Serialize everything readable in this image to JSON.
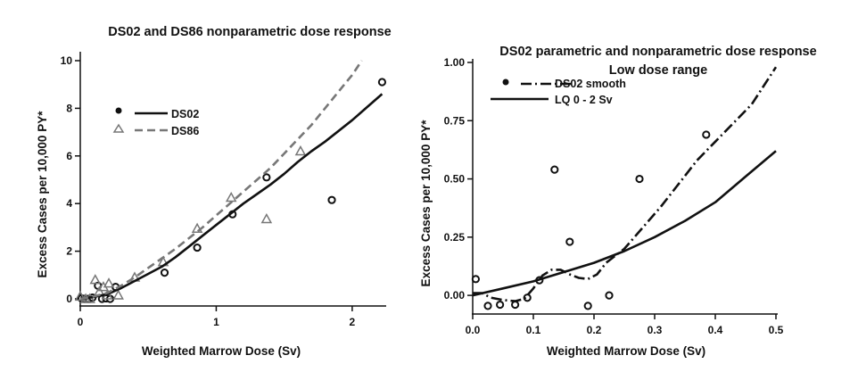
{
  "chart_data": [
    {
      "type": "scatter",
      "title": "DS02 and DS86 nonparametric dose response",
      "xlabel": "Weighted Marrow Dose (Sv)",
      "ylabel": "Excess Cases per 10,000 PY*",
      "xlim": [
        0,
        2.25
      ],
      "ylim": [
        -0.3,
        10
      ],
      "xticks": [
        0,
        1,
        2
      ],
      "xtick_labels": [
        "0",
        "1",
        "2"
      ],
      "yticks": [
        0,
        2,
        4,
        6,
        8,
        10
      ],
      "ytick_labels": [
        "0",
        "2",
        "4",
        "6",
        "8",
        "10"
      ],
      "legend": {
        "position": "top-left",
        "entries": [
          "DS02",
          "DS86"
        ]
      },
      "series": [
        {
          "name": "DS02",
          "kind": "points",
          "marker": "circle",
          "color": "#111111",
          "points": [
            [
              0.01,
              0.02
            ],
            [
              0.03,
              0.0
            ],
            [
              0.06,
              0.0
            ],
            [
              0.09,
              0.05
            ],
            [
              0.13,
              0.55
            ],
            [
              0.16,
              0.0
            ],
            [
              0.19,
              0.02
            ],
            [
              0.22,
              0.0
            ],
            [
              0.26,
              0.5
            ],
            [
              0.62,
              1.1
            ],
            [
              0.86,
              2.15
            ],
            [
              1.12,
              3.55
            ],
            [
              1.37,
              5.1
            ],
            [
              1.85,
              4.15
            ],
            [
              2.22,
              9.1
            ]
          ]
        },
        {
          "name": "DS86",
          "kind": "points",
          "marker": "triangle",
          "color": "#777777",
          "points": [
            [
              0.0,
              0.1
            ],
            [
              0.04,
              0.0
            ],
            [
              0.07,
              0.0
            ],
            [
              0.11,
              0.8
            ],
            [
              0.14,
              0.3
            ],
            [
              0.17,
              0.5
            ],
            [
              0.2,
              0.15
            ],
            [
              0.21,
              0.65
            ],
            [
              0.28,
              0.15
            ],
            [
              0.4,
              0.9
            ],
            [
              0.61,
              1.55
            ],
            [
              0.86,
              2.95
            ],
            [
              1.11,
              4.25
            ],
            [
              1.37,
              3.35
            ],
            [
              1.62,
              6.2
            ]
          ]
        },
        {
          "name": "DS02",
          "kind": "line",
          "style": "solid",
          "color": "#111111",
          "points": [
            [
              0.0,
              0.0
            ],
            [
              0.1,
              0.08
            ],
            [
              0.2,
              0.2
            ],
            [
              0.3,
              0.45
            ],
            [
              0.4,
              0.75
            ],
            [
              0.5,
              1.05
            ],
            [
              0.6,
              1.35
            ],
            [
              0.7,
              1.75
            ],
            [
              0.8,
              2.2
            ],
            [
              0.9,
              2.65
            ],
            [
              1.0,
              3.1
            ],
            [
              1.1,
              3.55
            ],
            [
              1.2,
              4.0
            ],
            [
              1.3,
              4.4
            ],
            [
              1.4,
              4.8
            ],
            [
              1.5,
              5.25
            ],
            [
              1.6,
              5.75
            ],
            [
              1.7,
              6.2
            ],
            [
              1.8,
              6.6
            ],
            [
              1.9,
              7.05
            ],
            [
              2.0,
              7.5
            ],
            [
              2.1,
              8.0
            ],
            [
              2.22,
              8.6
            ]
          ]
        },
        {
          "name": "DS86",
          "kind": "line",
          "style": "dashed",
          "color": "#777777",
          "points": [
            [
              0.0,
              0.0
            ],
            [
              0.1,
              0.1
            ],
            [
              0.2,
              0.25
            ],
            [
              0.3,
              0.55
            ],
            [
              0.4,
              0.9
            ],
            [
              0.5,
              1.3
            ],
            [
              0.6,
              1.7
            ],
            [
              0.7,
              2.1
            ],
            [
              0.8,
              2.55
            ],
            [
              0.9,
              3.0
            ],
            [
              1.0,
              3.5
            ],
            [
              1.1,
              4.0
            ],
            [
              1.2,
              4.5
            ],
            [
              1.3,
              5.0
            ],
            [
              1.4,
              5.5
            ],
            [
              1.5,
              6.1
            ],
            [
              1.6,
              6.7
            ],
            [
              1.7,
              7.3
            ],
            [
              1.8,
              8.0
            ],
            [
              1.9,
              8.7
            ],
            [
              2.0,
              9.4
            ],
            [
              2.07,
              10.0
            ]
          ]
        }
      ]
    },
    {
      "type": "scatter",
      "title": "DS02 parametric and nonparametric dose response",
      "subtitle": "Low dose range",
      "xlabel": "Weighted Marrow Dose (Sv)",
      "ylabel": "Excess Cases per 10,000 PY*",
      "xlim": [
        0,
        0.5
      ],
      "ylim": [
        -0.08,
        1.0
      ],
      "xticks": [
        0.0,
        0.1,
        0.2,
        0.3,
        0.4,
        0.5
      ],
      "xtick_labels": [
        "0.0",
        "0.1",
        "0.2",
        "0.3",
        "0.4",
        "0.5"
      ],
      "yticks": [
        0.0,
        0.25,
        0.5,
        0.75,
        1.0
      ],
      "ytick_labels": [
        "0.00",
        "0.25",
        "0.50",
        "0.75",
        "1.00"
      ],
      "legend": {
        "position": "top-left",
        "entries": [
          "DS02 smooth",
          "LQ 0 - 2 Sv"
        ]
      },
      "series": [
        {
          "name": "DS02",
          "kind": "points",
          "marker": "circle",
          "color": "#111111",
          "points": [
            [
              0.005,
              0.07
            ],
            [
              0.025,
              -0.045
            ],
            [
              0.045,
              -0.04
            ],
            [
              0.07,
              -0.04
            ],
            [
              0.09,
              -0.01
            ],
            [
              0.11,
              0.065
            ],
            [
              0.135,
              0.54
            ],
            [
              0.16,
              0.23
            ],
            [
              0.19,
              -0.045
            ],
            [
              0.225,
              0.0
            ],
            [
              0.275,
              0.5
            ],
            [
              0.385,
              0.69
            ]
          ]
        },
        {
          "name": "DS02 smooth",
          "kind": "line",
          "style": "dashdot",
          "color": "#111111",
          "points": [
            [
              0.0,
              0.01
            ],
            [
              0.015,
              0.01
            ],
            [
              0.03,
              -0.01
            ],
            [
              0.05,
              -0.02
            ],
            [
              0.07,
              -0.025
            ],
            [
              0.085,
              -0.015
            ],
            [
              0.1,
              0.03
            ],
            [
              0.115,
              0.085
            ],
            [
              0.13,
              0.11
            ],
            [
              0.145,
              0.11
            ],
            [
              0.16,
              0.09
            ],
            [
              0.175,
              0.075
            ],
            [
              0.19,
              0.07
            ],
            [
              0.205,
              0.09
            ],
            [
              0.22,
              0.14
            ],
            [
              0.25,
              0.2
            ],
            [
              0.28,
              0.29
            ],
            [
              0.31,
              0.38
            ],
            [
              0.34,
              0.48
            ],
            [
              0.37,
              0.58
            ],
            [
              0.4,
              0.66
            ],
            [
              0.43,
              0.74
            ],
            [
              0.46,
              0.82
            ],
            [
              0.5,
              0.98
            ]
          ]
        },
        {
          "name": "LQ 0 - 2 Sv",
          "kind": "line",
          "style": "solid",
          "color": "#111111",
          "points": [
            [
              0.0,
              0.0
            ],
            [
              0.05,
              0.03
            ],
            [
              0.1,
              0.06
            ],
            [
              0.15,
              0.1
            ],
            [
              0.2,
              0.14
            ],
            [
              0.25,
              0.19
            ],
            [
              0.3,
              0.25
            ],
            [
              0.35,
              0.32
            ],
            [
              0.4,
              0.4
            ],
            [
              0.45,
              0.51
            ],
            [
              0.5,
              0.62
            ]
          ]
        }
      ]
    }
  ]
}
